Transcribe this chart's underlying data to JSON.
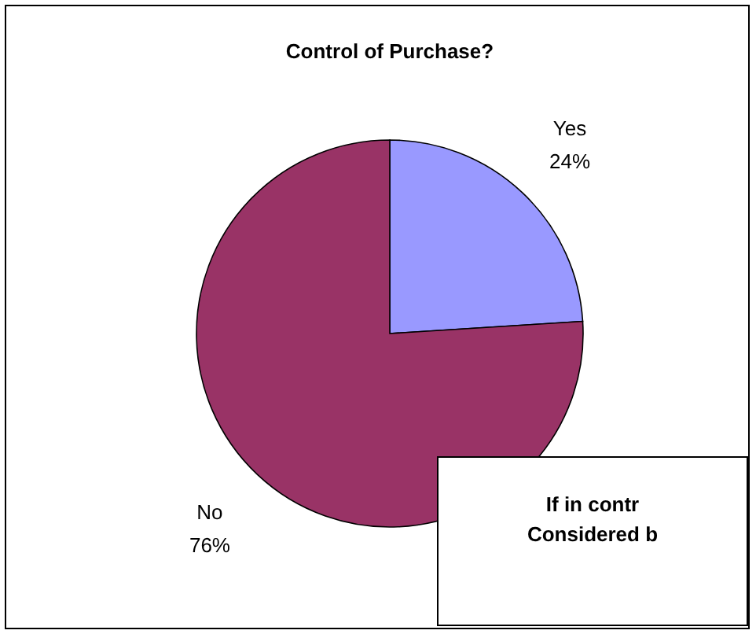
{
  "chart_data": [
    {
      "type": "pie",
      "title": "Control of Purchase?",
      "categories": [
        "Yes",
        "No"
      ],
      "values": [
        24,
        76
      ],
      "colors": [
        "#9999ff",
        "#993366"
      ],
      "value_labels": [
        "24%",
        "76%"
      ]
    },
    {
      "type": "other",
      "title": "If in contr",
      "subtitle": "Considered b"
    }
  ]
}
